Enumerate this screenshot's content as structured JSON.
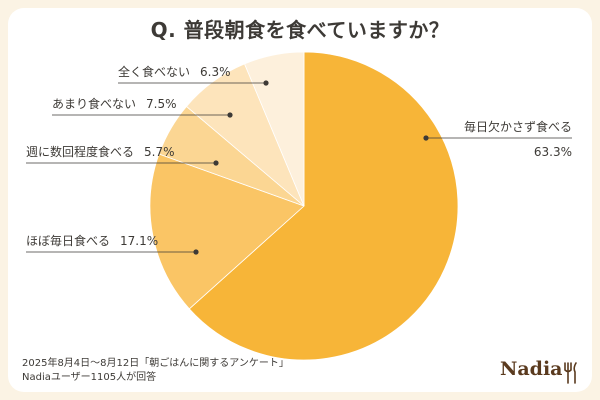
{
  "title": "Q. 普段朝食を食べていますか？",
  "footer": {
    "line1": "2025年8月4日～8月12日「朝ごはんに関するアンケート」",
    "line2": "Nadiaユーザー1105人が回答"
  },
  "logo": {
    "text": "Nadia"
  },
  "colors": {
    "background": "#fbf3e4",
    "card": "#ffffff",
    "text": "#3d3a36",
    "logo": "#5a3a1e"
  },
  "chart_data": {
    "type": "pie",
    "title": "Q. 普段朝食を食べていますか？",
    "slices": [
      {
        "label": "毎日欠かさず食べる",
        "value": 63.3,
        "value_label": "63.3%",
        "color": "#f7b538"
      },
      {
        "label": "ほぼ毎日食べる",
        "value": 17.1,
        "value_label": "17.1%",
        "color": "#fac565"
      },
      {
        "label": "週に数回程度食べる",
        "value": 5.7,
        "value_label": "5.7%",
        "color": "#fbd693"
      },
      {
        "label": "あまり食べない",
        "value": 7.5,
        "value_label": "7.5%",
        "color": "#fde4bb"
      },
      {
        "label": "全く食べない",
        "value": 6.3,
        "value_label": "6.3%",
        "color": "#fdf0dc"
      }
    ]
  }
}
